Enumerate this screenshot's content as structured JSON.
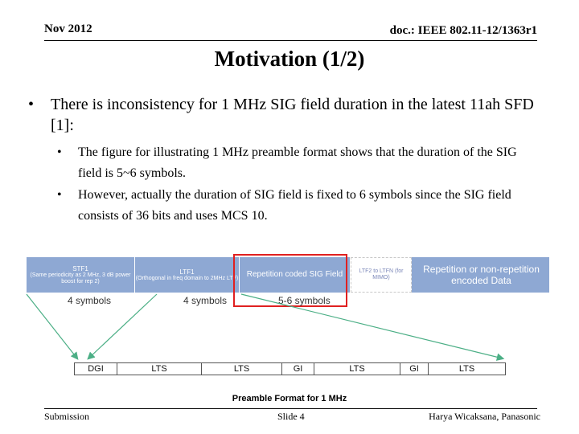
{
  "header": {
    "date": "Nov 2012",
    "doc": "doc.: IEEE 802.11-12/1363r1"
  },
  "title": "Motivation (1/2)",
  "bullets": {
    "main": "There is inconsistency for 1 MHz SIG field duration in the latest 11ah SFD [1]:",
    "sub1": "The figure for illustrating 1 MHz preamble format shows that the duration of the SIG field is 5~6 symbols.",
    "sub2": "However, actually the duration of SIG field is fixed to 6 symbols since the SIG field consists of 36 bits and uses MCS 10."
  },
  "figure": {
    "stf": {
      "name": "STF1",
      "desc": "(Same periodicity as 2 MHz, 3 dB power boost for rep 2)"
    },
    "ltf": {
      "name": "LTF1",
      "desc": "(Orthogonal in freq domain to 2MHz LTF)"
    },
    "sig": "Repetition coded SIG Field",
    "ltfn": "LTF2 to LTFN (for MIMO)",
    "data": "Repetition or non-repetition encoded Data",
    "symbols": {
      "stf": "4 symbols",
      "ltf": "4 symbols",
      "sig": "5-6 symbols"
    },
    "bottom_cells": [
      "DGI",
      "LTS",
      "LTS",
      "GI",
      "LTS",
      "GI",
      "LTS"
    ],
    "caption": "Preamble Format for 1 MHz",
    "colors": {
      "bar": "#8ea8d3",
      "highlight": "#e02020",
      "arrows": "#4caf86"
    }
  },
  "footer": {
    "left": "Submission",
    "center": "Slide 4",
    "right": "Harya Wicaksana, Panasonic"
  }
}
